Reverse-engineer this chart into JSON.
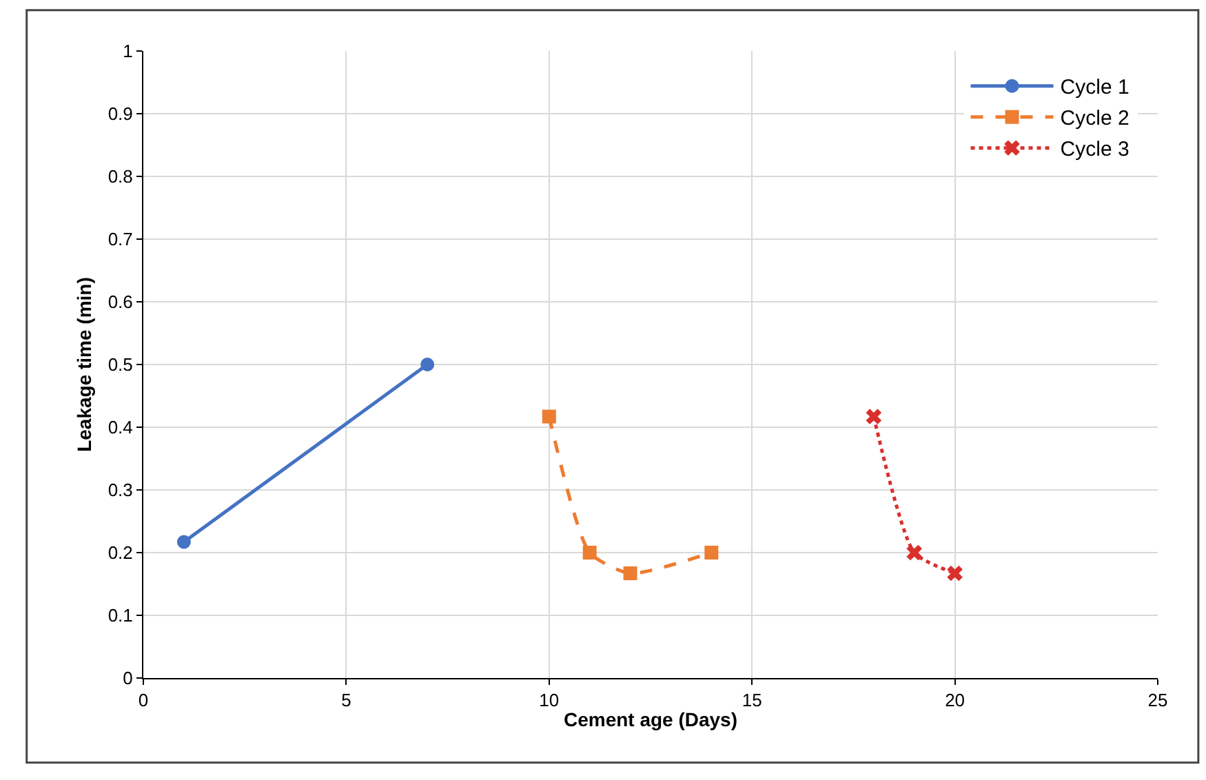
{
  "chart_data": {
    "type": "line",
    "xlabel": "Cement age (Days)",
    "ylabel": "Leakage time (min)",
    "xlim": [
      0,
      25
    ],
    "xticks": [
      0,
      5,
      10,
      15,
      20,
      25
    ],
    "ylim": [
      0,
      1
    ],
    "yticks": [
      0,
      0.1,
      0.2,
      0.3,
      0.4,
      0.5,
      0.6,
      0.7,
      0.8,
      0.9,
      1
    ],
    "grid": true,
    "legend": "top right",
    "series": [
      {
        "name": "Cycle 1",
        "color": "#4472c4",
        "marker": "circle",
        "line_style": "solid",
        "x": [
          1,
          7
        ],
        "values": [
          0.217,
          0.5
        ]
      },
      {
        "name": "Cycle 2",
        "color": "#ed7d31",
        "marker": "square",
        "line_style": "dashed",
        "x": [
          10,
          11,
          12,
          14
        ],
        "values": [
          0.417,
          0.2,
          0.167,
          0.2
        ]
      },
      {
        "name": "Cycle 3",
        "color": "#d9302c",
        "marker": "cross",
        "line_style": "dotted",
        "x": [
          18,
          19,
          20
        ],
        "values": [
          0.417,
          0.2,
          0.167
        ]
      }
    ]
  }
}
